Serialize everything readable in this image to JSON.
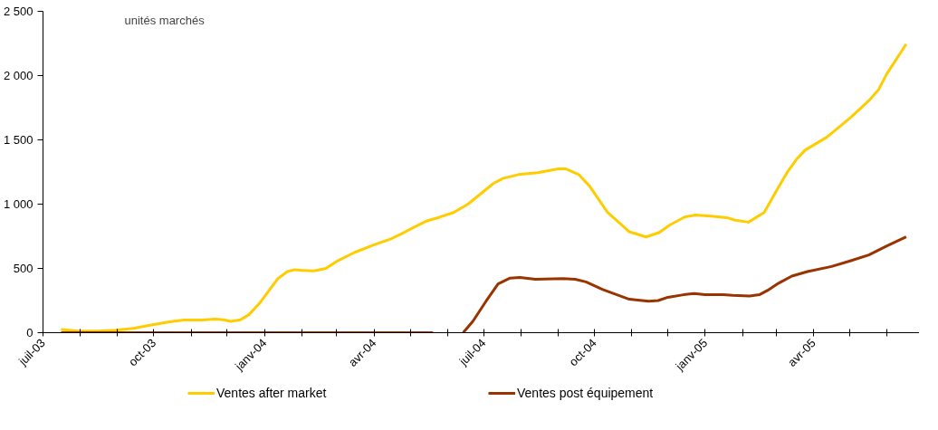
{
  "chart_data": {
    "type": "line",
    "annotations": [
      "unités marchés"
    ],
    "ylim": [
      0,
      2500
    ],
    "yticks": [
      {
        "value": 0,
        "label": "0"
      },
      {
        "value": 500,
        "label": "500"
      },
      {
        "value": 1000,
        "label": "1 000"
      },
      {
        "value": 1500,
        "label": "1 500"
      },
      {
        "value": 2000,
        "label": "2 000"
      },
      {
        "value": 2500,
        "label": "2 500"
      }
    ],
    "xlim": [
      "2003-07-01",
      "2005-06-28"
    ],
    "xticks": [
      {
        "value": "2003-07",
        "label": "juil-03"
      },
      {
        "value": "2003-08",
        "label": null
      },
      {
        "value": "2003-09",
        "label": null
      },
      {
        "value": "2003-10",
        "label": "oct-03"
      },
      {
        "value": "2003-11",
        "label": null
      },
      {
        "value": "2003-12",
        "label": null
      },
      {
        "value": "2004-01",
        "label": "janv-04"
      },
      {
        "value": "2004-02",
        "label": null
      },
      {
        "value": "2004-03",
        "label": null
      },
      {
        "value": "2004-04",
        "label": "avr-04"
      },
      {
        "value": "2004-05",
        "label": null
      },
      {
        "value": "2004-06",
        "label": null
      },
      {
        "value": "2004-07",
        "label": "juil-04"
      },
      {
        "value": "2004-08",
        "label": null
      },
      {
        "value": "2004-09",
        "label": null
      },
      {
        "value": "2004-10",
        "label": "oct-04"
      },
      {
        "value": "2004-11",
        "label": null
      },
      {
        "value": "2004-12",
        "label": null
      },
      {
        "value": "2005-01",
        "label": "janv-05"
      },
      {
        "value": "2005-02",
        "label": null
      },
      {
        "value": "2005-03",
        "label": null
      },
      {
        "value": "2005-04",
        "label": "avr-05"
      },
      {
        "value": "2005-05",
        "label": null
      },
      {
        "value": "2005-06",
        "label": null
      }
    ],
    "grid": false,
    "legend": "bottom",
    "marker": "none",
    "line_style": "solid",
    "series": [
      {
        "name": "Ventes after market",
        "color": "#ffcc00",
        "x": [
          "2003-07-16",
          "2003-07-31",
          "2003-08-15",
          "2003-08-30",
          "2003-09-14",
          "2003-09-29",
          "2003-10-14",
          "2003-10-26",
          "2003-11-10",
          "2003-11-21",
          "2003-11-28",
          "2003-12-04",
          "2003-12-12",
          "2003-12-19",
          "2003-12-28",
          "2004-01-12",
          "2004-01-20",
          "2004-01-26",
          "2004-02-02",
          "2004-02-11",
          "2004-02-21",
          "2004-03-01",
          "2004-03-16",
          "2004-03-31",
          "2004-04-15",
          "2004-04-24",
          "2004-05-04",
          "2004-05-15",
          "2004-05-26",
          "2004-06-06",
          "2004-06-18",
          "2004-07-09",
          "2004-07-17",
          "2004-07-30",
          "2004-08-15",
          "2004-09-01",
          "2004-09-07",
          "2004-09-18",
          "2004-09-27",
          "2004-10-12",
          "2004-10-30",
          "2004-11-13",
          "2004-11-24",
          "2004-12-03",
          "2004-12-15",
          "2004-12-24",
          "2005-01-08",
          "2005-01-19",
          "2005-01-26",
          "2005-02-06",
          "2005-02-19",
          "2005-03-01",
          "2005-03-10",
          "2005-03-18",
          "2005-03-25",
          "2005-04-12",
          "2005-05-02",
          "2005-05-17",
          "2005-05-25",
          "2005-06-01",
          "2005-06-17"
        ],
        "values": [
          25,
          13,
          13,
          20,
          33,
          60,
          85,
          98,
          98,
          105,
          100,
          88,
          100,
          140,
          230,
          420,
          475,
          490,
          485,
          480,
          500,
          555,
          625,
          680,
          730,
          770,
          820,
          870,
          900,
          935,
          1000,
          1160,
          1200,
          1230,
          1245,
          1275,
          1275,
          1230,
          1140,
          935,
          785,
          745,
          780,
          840,
          900,
          915,
          905,
          895,
          875,
          860,
          935,
          1100,
          1245,
          1350,
          1420,
          1520,
          1675,
          1805,
          1890,
          2015,
          2245
        ]
      },
      {
        "name": "Ventes post équipement",
        "color": "#993300",
        "x": [
          "2003-07-16",
          "2003-12-27",
          "2004-05-20",
          "2004-06-01",
          "2004-06-14",
          "2004-06-22",
          "2004-07-03",
          "2004-07-13",
          "2004-07-23",
          "2004-07-31",
          "2004-08-13",
          "2004-09-05",
          "2004-09-15",
          "2004-09-24",
          "2004-10-08",
          "2004-10-30",
          "2004-11-15",
          "2004-11-23",
          "2004-12-01",
          "2004-12-14",
          "2004-12-23",
          "2005-01-01",
          "2005-01-16",
          "2005-01-24",
          "2005-02-07",
          "2005-02-15",
          "2005-02-22",
          "2005-03-03",
          "2005-03-14",
          "2005-03-27",
          "2005-04-16",
          "2005-05-02",
          "2005-05-17",
          "2005-06-01",
          "2005-06-17"
        ],
        "values": [
          0,
          0,
          0,
          null,
          0,
          88,
          245,
          380,
          425,
          430,
          415,
          420,
          415,
          395,
          335,
          260,
          245,
          250,
          275,
          295,
          305,
          295,
          295,
          290,
          285,
          295,
          330,
          385,
          440,
          475,
          515,
          560,
          605,
          675,
          745
        ]
      }
    ]
  }
}
